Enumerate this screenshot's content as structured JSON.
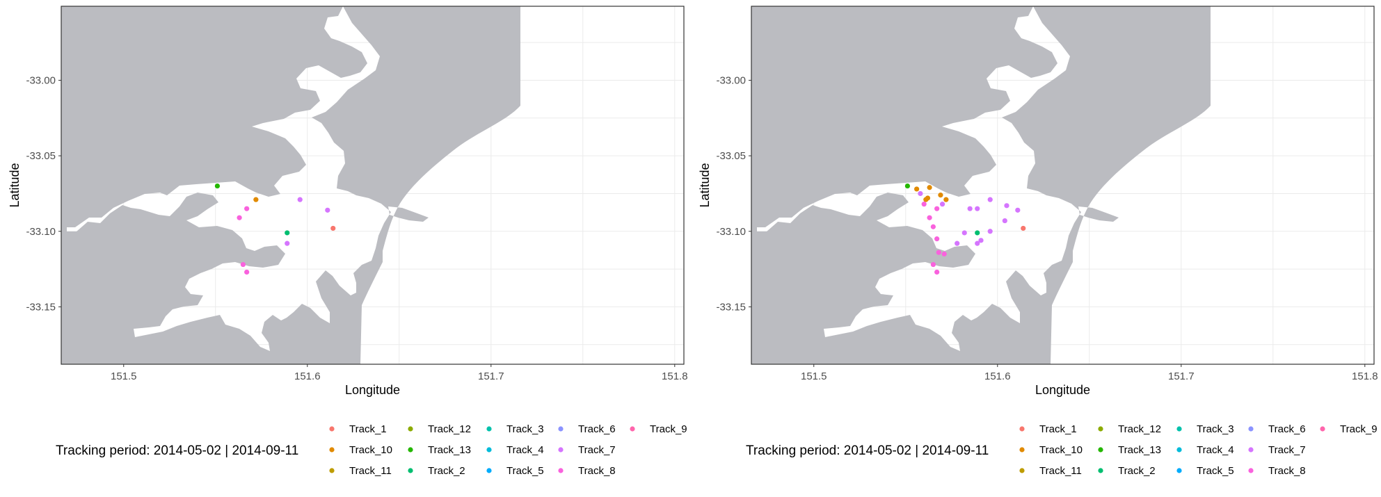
{
  "chart_data": [
    {
      "type": "scatter",
      "xlabel": "Longitude",
      "ylabel": "Latitude",
      "xlim": [
        151.466,
        151.805
      ],
      "ylim": [
        -33.188,
        -32.951
      ],
      "x_ticks": [
        "151.5",
        "151.6",
        "151.7",
        "151.8"
      ],
      "y_ticks": [
        "-33.00",
        "-33.05",
        "-33.10",
        "-33.15"
      ],
      "grid": true,
      "legend": {
        "title": "Tracking period: 2014-05-02 | 2014-09-11",
        "position": "bottom",
        "entries": [
          {
            "name": "Track_1",
            "color": "#F8766D"
          },
          {
            "name": "Track_10",
            "color": "#E18A00"
          },
          {
            "name": "Track_11",
            "color": "#BE9C00"
          },
          {
            "name": "Track_12",
            "color": "#8CAB00"
          },
          {
            "name": "Track_13",
            "color": "#24B700"
          },
          {
            "name": "Track_2",
            "color": "#00BE70"
          },
          {
            "name": "Track_3",
            "color": "#00C1AB"
          },
          {
            "name": "Track_4",
            "color": "#00BBDA"
          },
          {
            "name": "Track_5",
            "color": "#00ACFC"
          },
          {
            "name": "Track_6",
            "color": "#8B93FF"
          },
          {
            "name": "Track_7",
            "color": "#D575FE"
          },
          {
            "name": "Track_8",
            "color": "#F962DD"
          },
          {
            "name": "Track_9",
            "color": "#FF65AC"
          }
        ]
      },
      "series": [
        {
          "track": "Track_13",
          "color": "#24B700",
          "points": [
            [
              151.551,
              -33.07
            ]
          ]
        },
        {
          "track": "Track_10",
          "color": "#E18A00",
          "points": [
            [
              151.572,
              -33.079
            ]
          ]
        },
        {
          "track": "Track_1",
          "color": "#F8766D",
          "points": [
            [
              151.614,
              -33.098
            ]
          ]
        },
        {
          "track": "Track_2",
          "color": "#00BE70",
          "points": [
            [
              151.589,
              -33.101
            ]
          ]
        },
        {
          "track": "Track_7",
          "color": "#D575FE",
          "points": [
            [
              151.596,
              -33.079
            ],
            [
              151.611,
              -33.086
            ],
            [
              151.589,
              -33.108
            ]
          ]
        },
        {
          "track": "Track_8",
          "color": "#F962DD",
          "points": [
            [
              151.563,
              -33.091
            ],
            [
              151.567,
              -33.085
            ],
            [
              151.565,
              -33.122
            ],
            [
              151.567,
              -33.127
            ]
          ]
        }
      ]
    },
    {
      "type": "scatter",
      "xlabel": "Longitude",
      "ylabel": "Latitude",
      "xlim": [
        151.466,
        151.805
      ],
      "ylim": [
        -33.188,
        -32.951
      ],
      "x_ticks": [
        "151.5",
        "151.6",
        "151.7",
        "151.8"
      ],
      "y_ticks": [
        "-33.00",
        "-33.05",
        "-33.10",
        "-33.15"
      ],
      "grid": true,
      "legend": {
        "title": "Tracking period: 2014-05-02 | 2014-09-11",
        "position": "bottom",
        "entries": [
          {
            "name": "Track_1",
            "color": "#F8766D"
          },
          {
            "name": "Track_10",
            "color": "#E18A00"
          },
          {
            "name": "Track_11",
            "color": "#BE9C00"
          },
          {
            "name": "Track_12",
            "color": "#8CAB00"
          },
          {
            "name": "Track_13",
            "color": "#24B700"
          },
          {
            "name": "Track_2",
            "color": "#00BE70"
          },
          {
            "name": "Track_3",
            "color": "#00C1AB"
          },
          {
            "name": "Track_4",
            "color": "#00BBDA"
          },
          {
            "name": "Track_5",
            "color": "#00ACFC"
          },
          {
            "name": "Track_6",
            "color": "#8B93FF"
          },
          {
            "name": "Track_7",
            "color": "#D575FE"
          },
          {
            "name": "Track_8",
            "color": "#F962DD"
          },
          {
            "name": "Track_9",
            "color": "#FF65AC"
          }
        ]
      },
      "series": [
        {
          "track": "Track_13",
          "color": "#24B700",
          "points": [
            [
              151.551,
              -33.07
            ]
          ]
        },
        {
          "track": "Track_10",
          "color": "#E18A00",
          "points": [
            [
              151.556,
              -33.072
            ],
            [
              151.563,
              -33.071
            ],
            [
              151.569,
              -33.076
            ],
            [
              151.572,
              -33.079
            ],
            [
              151.562,
              -33.078
            ],
            [
              151.561,
              -33.079
            ]
          ]
        },
        {
          "track": "Track_1",
          "color": "#F8766D",
          "points": [
            [
              151.614,
              -33.098
            ]
          ]
        },
        {
          "track": "Track_2",
          "color": "#00BE70",
          "points": [
            [
              151.589,
              -33.101
            ]
          ]
        },
        {
          "track": "Track_7",
          "color": "#D575FE",
          "points": [
            [
              151.558,
              -33.075
            ],
            [
              151.57,
              -33.082
            ],
            [
              151.585,
              -33.085
            ],
            [
              151.596,
              -33.079
            ],
            [
              151.605,
              -33.083
            ],
            [
              151.611,
              -33.086
            ],
            [
              151.589,
              -33.085
            ],
            [
              151.604,
              -33.093
            ],
            [
              151.596,
              -33.1
            ],
            [
              151.589,
              -33.108
            ],
            [
              151.591,
              -33.106
            ],
            [
              151.582,
              -33.101
            ],
            [
              151.578,
              -33.108
            ]
          ]
        },
        {
          "track": "Track_8",
          "color": "#F962DD",
          "points": [
            [
              151.56,
              -33.082
            ],
            [
              151.567,
              -33.085
            ],
            [
              151.563,
              -33.091
            ],
            [
              151.565,
              -33.097
            ],
            [
              151.567,
              -33.105
            ],
            [
              151.568,
              -33.114
            ],
            [
              151.571,
              -33.115
            ],
            [
              151.565,
              -33.122
            ],
            [
              151.567,
              -33.127
            ]
          ]
        }
      ]
    }
  ]
}
